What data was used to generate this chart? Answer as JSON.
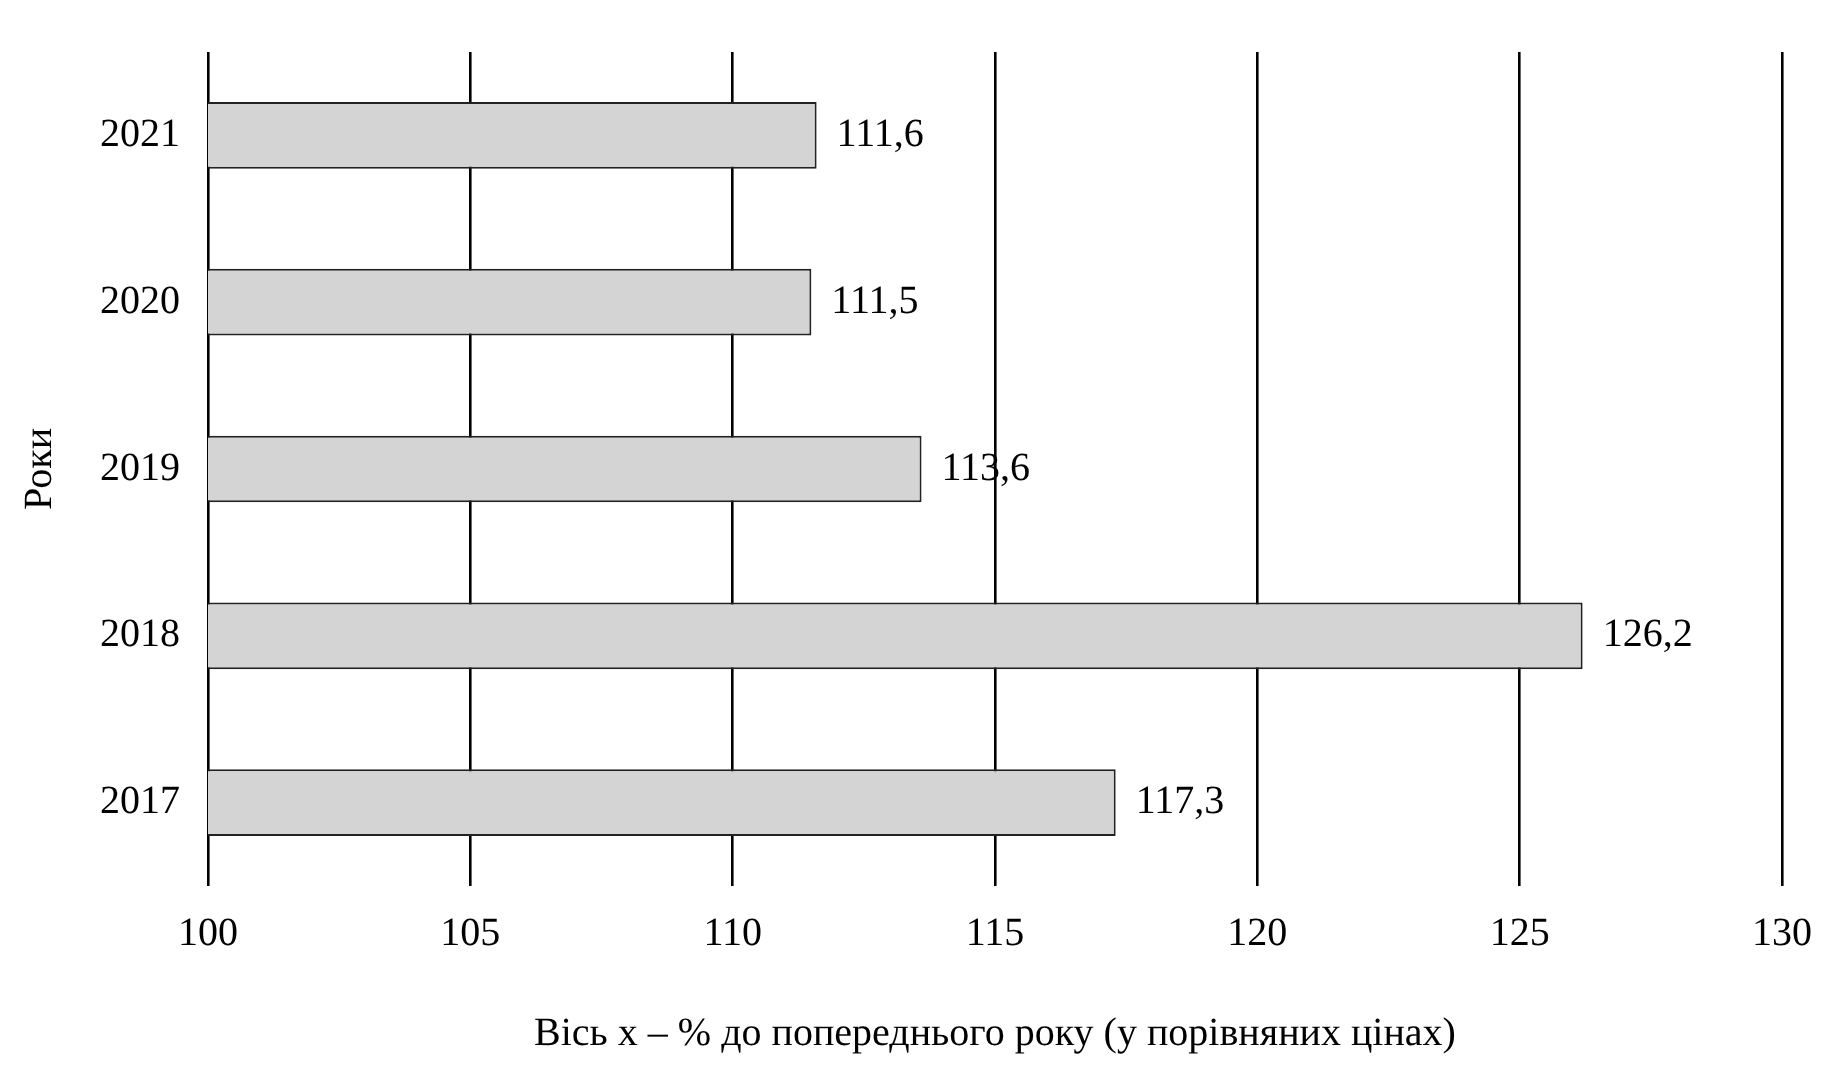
{
  "chart_data": {
    "type": "bar",
    "orientation": "horizontal",
    "categories": [
      "2021",
      "2020",
      "2019",
      "2018",
      "2017"
    ],
    "values": [
      111.6,
      111.5,
      113.6,
      126.2,
      117.3
    ],
    "value_labels": [
      "111,6",
      "111,5",
      "113,6",
      "126,2",
      "117,3"
    ],
    "color": "#d4d4d4",
    "xlim": [
      100,
      130
    ],
    "xticks": [
      100,
      105,
      110,
      115,
      120,
      125,
      130
    ],
    "xlabel": "Вісь x – % до попереднього року (у порівняних цінах)",
    "ylabel": "Роки",
    "grid": "x",
    "legend": false
  }
}
